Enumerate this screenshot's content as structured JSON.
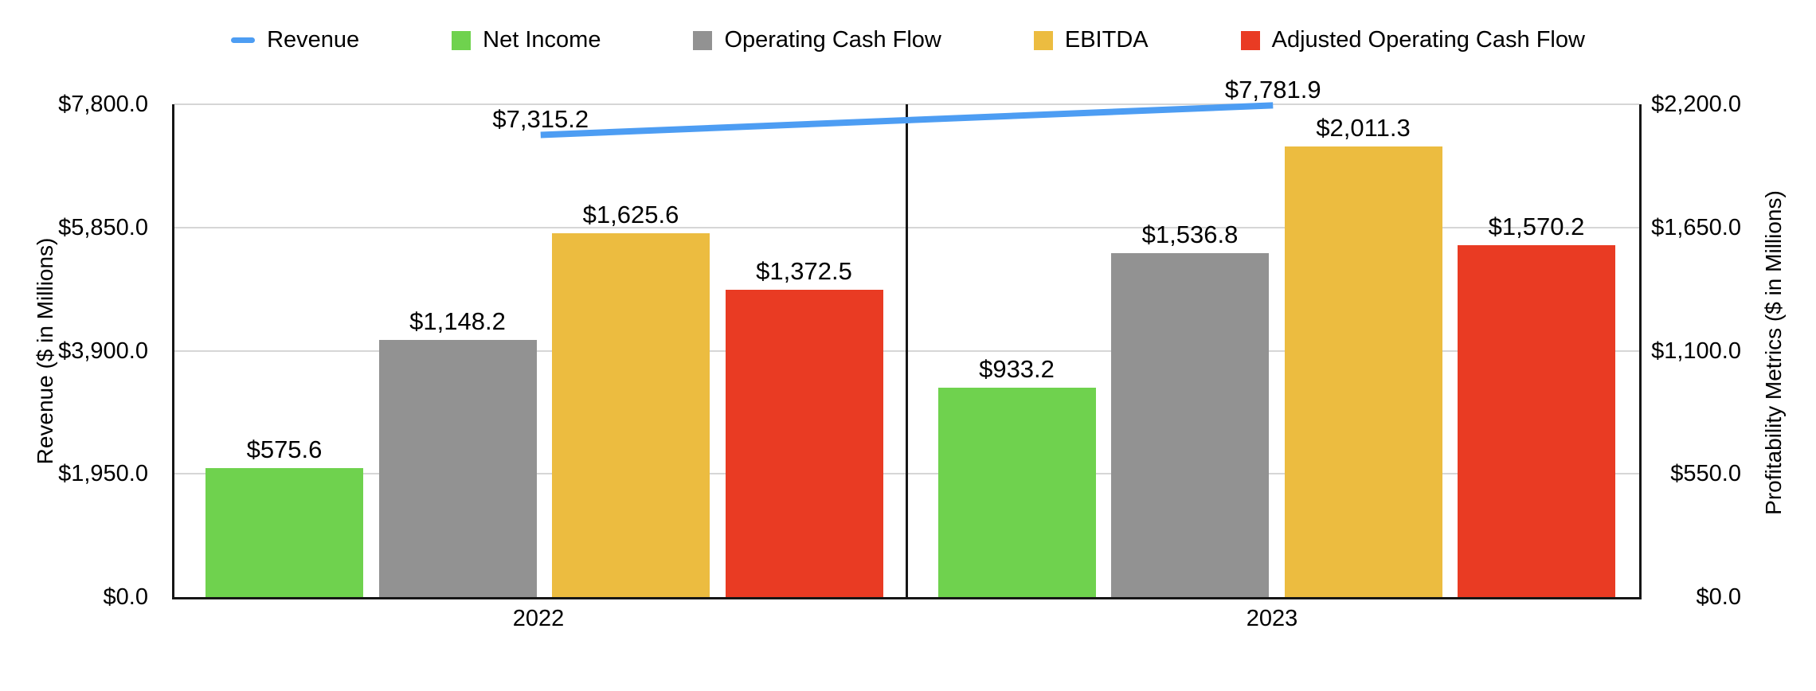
{
  "chart_data": {
    "type": "bar",
    "subtype": "grouped-bars-with-line-overlay",
    "categories": [
      "2022",
      "2023"
    ],
    "bar_series": [
      {
        "name": "Net Income",
        "color": "#6fd24e",
        "values": [
          575.6,
          933.2
        ],
        "labels": [
          "$575.6",
          "$933.2"
        ]
      },
      {
        "name": "Operating Cash Flow",
        "color": "#929292",
        "values": [
          1148.2,
          1536.8
        ],
        "labels": [
          "$1,148.2",
          "$1,536.8"
        ]
      },
      {
        "name": "EBITDA",
        "color": "#ecbc40",
        "values": [
          1625.6,
          2011.3
        ],
        "labels": [
          "$1,625.6",
          "$2,011.3"
        ]
      },
      {
        "name": "Adjusted Operating Cash Flow",
        "color": "#e93b23",
        "values": [
          1372.5,
          1570.2
        ],
        "labels": [
          "$1,372.5",
          "$1,570.2"
        ]
      }
    ],
    "line_series": {
      "name": "Revenue",
      "color": "#4d9df3",
      "values": [
        7315.2,
        7781.9
      ],
      "labels": [
        "$7,315.2",
        "$7,781.9"
      ]
    },
    "left_axis": {
      "title": "Revenue ($ in Millions)",
      "range": [
        0,
        7800
      ],
      "ticks": [
        "$0.0",
        "$1,950.0",
        "$3,900.0",
        "$5,850.0",
        "$7,800.0"
      ]
    },
    "right_axis": {
      "title": "Profitability Metrics ($ in Millions)",
      "range": [
        0,
        2200
      ],
      "ticks": [
        "$0.0",
        "$550.0",
        "$1,100.0",
        "$1,650.0",
        "$2,200.0"
      ]
    },
    "legend": [
      {
        "label": "Revenue",
        "swatch": "line",
        "color": "#4d9df3"
      },
      {
        "label": "Net Income",
        "swatch": "box",
        "color": "#6fd24e"
      },
      {
        "label": "Operating Cash Flow",
        "swatch": "box",
        "color": "#929292"
      },
      {
        "label": "EBITDA",
        "swatch": "box",
        "color": "#ecbc40"
      },
      {
        "label": "Adjusted Operating Cash Flow",
        "swatch": "box",
        "color": "#e93b23"
      }
    ],
    "grid": true,
    "legend_position": "top",
    "colors": {
      "grid": "#d6d6d6",
      "frame": "#161616",
      "text": "#000000",
      "background": "#ffffff"
    }
  }
}
